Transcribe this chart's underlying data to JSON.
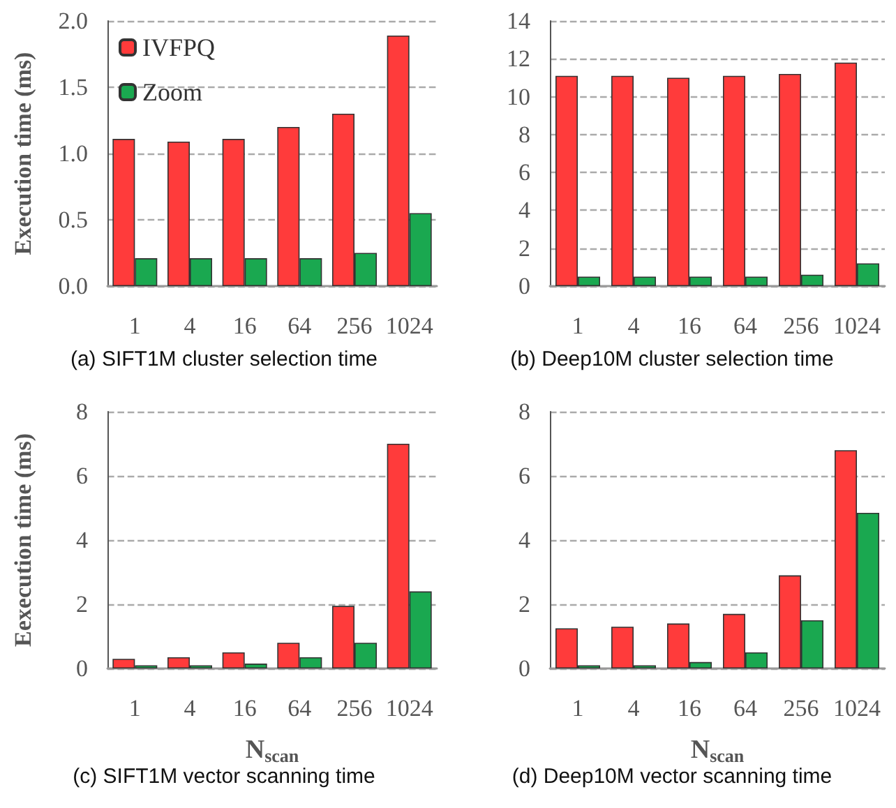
{
  "chart_data": [
    {
      "type": "bar",
      "title": "(a) SIFT1M cluster selection time",
      "ylabel": "Execution time (ms)",
      "categories": [
        "1",
        "4",
        "16",
        "64",
        "256",
        "1024"
      ],
      "series": [
        {
          "name": "IVFPQ",
          "color": "#ff3b3b",
          "values": [
            1.11,
            1.09,
            1.11,
            1.2,
            1.3,
            1.89
          ]
        },
        {
          "name": "Zoom",
          "color": "#1aa850",
          "values": [
            0.21,
            0.21,
            0.21,
            0.21,
            0.25,
            0.55
          ]
        }
      ],
      "ylim": [
        0,
        2
      ],
      "yticks": [
        {
          "value": 0,
          "label": "0.0"
        },
        {
          "value": 0.5,
          "label": "0.5"
        },
        {
          "value": 1,
          "label": "1.0"
        },
        {
          "value": 1.5,
          "label": "1.5"
        },
        {
          "value": 2,
          "label": "2.0"
        }
      ],
      "grid": "y",
      "legend": "top left"
    },
    {
      "type": "bar",
      "title": "(b) Deep10M cluster selection time",
      "categories": [
        "1",
        "4",
        "16",
        "64",
        "256",
        "1024"
      ],
      "series": [
        {
          "color": "#ff3b3b",
          "values": [
            11.1,
            11.1,
            11.0,
            11.1,
            11.2,
            11.8
          ]
        },
        {
          "color": "#1aa850",
          "values": [
            0.5,
            0.5,
            0.5,
            0.5,
            0.6,
            1.2
          ]
        }
      ],
      "ylim": [
        0,
        14
      ],
      "yticks": [
        0,
        2,
        4,
        6,
        8,
        10,
        12,
        14
      ],
      "grid": "y"
    },
    {
      "type": "bar",
      "title": "(c) SIFT1M vector scanning time",
      "ylabel": "Eexecution time (ms)",
      "xlabel": "N$_{scan}$",
      "categories": [
        "1",
        "4",
        "16",
        "64",
        "256",
        "1024"
      ],
      "series": [
        {
          "color": "#ff3b3b",
          "values": [
            0.3,
            0.35,
            0.5,
            0.8,
            1.95,
            7.0
          ]
        },
        {
          "color": "#1aa850",
          "values": [
            0.1,
            0.1,
            0.15,
            0.35,
            0.8,
            2.4
          ]
        }
      ],
      "ylim": [
        0,
        8
      ],
      "yticks": [
        0,
        2,
        4,
        6,
        8
      ],
      "grid": "y"
    },
    {
      "type": "bar",
      "title": "(d) Deep10M vector scanning time",
      "xlabel": "N$_{scan}$",
      "categories": [
        "1",
        "4",
        "16",
        "64",
        "256",
        "1024"
      ],
      "series": [
        {
          "color": "#ff3b3b",
          "values": [
            1.25,
            1.3,
            1.4,
            1.7,
            2.9,
            6.8
          ]
        },
        {
          "color": "#1aa850",
          "values": [
            0.1,
            0.1,
            0.2,
            0.5,
            1.5,
            4.85
          ]
        }
      ],
      "ylim": [
        0,
        8
      ],
      "yticks": [
        0,
        2,
        4,
        6,
        8
      ],
      "grid": "y"
    }
  ]
}
